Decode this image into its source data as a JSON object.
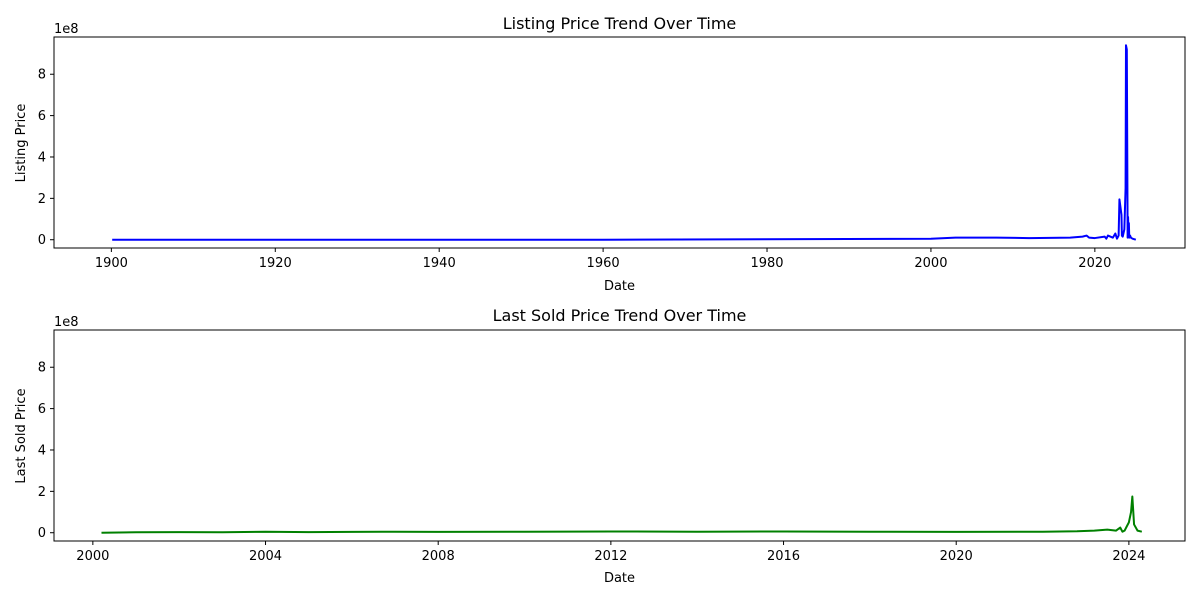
{
  "chart_data": [
    {
      "type": "line",
      "title": "Listing Price Trend Over Time",
      "xlabel": "Date",
      "ylabel": "Listing Price",
      "y_offset_label": "1e8",
      "xlim": [
        1893,
        2031
      ],
      "ylim": [
        -0.4,
        9.8
      ],
      "x_ticks": [
        1900,
        1920,
        1940,
        1960,
        1980,
        2000,
        2020
      ],
      "y_ticks": [
        0,
        2,
        4,
        6,
        8
      ],
      "color": "#0000ff",
      "grid": false,
      "series": [
        {
          "x": [
            1900.1,
            1960,
            2000,
            2003,
            2008,
            2012,
            2017,
            2018.5,
            2019,
            2019.3,
            2020,
            2021.2,
            2021.4,
            2021.6,
            2022.2,
            2022.5,
            2022.7,
            2022.9,
            2023.0,
            2023.25,
            2023.3,
            2023.4,
            2023.6,
            2023.75,
            2023.8,
            2023.9,
            2024.0,
            2024.05,
            2024.1,
            2024.15,
            2024.2,
            2024.3,
            2024.4,
            2024.6,
            2025
          ],
          "y": [
            0.0,
            0.0,
            0.05,
            0.1,
            0.1,
            0.08,
            0.1,
            0.15,
            0.2,
            0.1,
            0.08,
            0.15,
            0.05,
            0.2,
            0.1,
            0.3,
            0.05,
            0.2,
            1.95,
            1.2,
            0.2,
            0.15,
            0.5,
            2.5,
            9.4,
            9.2,
            0.1,
            1.1,
            0.5,
            0.8,
            0.1,
            0.2,
            0.1,
            0.05,
            0.0
          ]
        }
      ]
    },
    {
      "type": "line",
      "title": "Last Sold Price Trend Over Time",
      "xlabel": "Date",
      "ylabel": "Last Sold Price",
      "y_offset_label": "1e8",
      "xlim": [
        1999.1,
        2025.3
      ],
      "ylim": [
        -0.4,
        9.8
      ],
      "x_ticks": [
        2000,
        2004,
        2008,
        2012,
        2016,
        2020,
        2024
      ],
      "y_ticks": [
        0,
        2,
        4,
        6,
        8
      ],
      "color": "#008000",
      "grid": false,
      "series": [
        {
          "x": [
            2000.2,
            2001,
            2002,
            2003,
            2004,
            2005,
            2006,
            2007,
            2008,
            2010,
            2012,
            2014,
            2016,
            2018,
            2020,
            2022,
            2022.8,
            2023.2,
            2023.5,
            2023.7,
            2023.8,
            2023.85,
            2023.9,
            2023.95,
            2024.0,
            2024.05,
            2024.08,
            2024.12,
            2024.2,
            2024.3
          ],
          "y": [
            0.0,
            0.02,
            0.03,
            0.02,
            0.05,
            0.03,
            0.04,
            0.05,
            0.04,
            0.05,
            0.06,
            0.05,
            0.06,
            0.05,
            0.04,
            0.05,
            0.07,
            0.1,
            0.15,
            0.1,
            0.25,
            0.05,
            0.1,
            0.3,
            0.5,
            1.0,
            1.75,
            0.4,
            0.1,
            0.05
          ]
        }
      ]
    }
  ]
}
